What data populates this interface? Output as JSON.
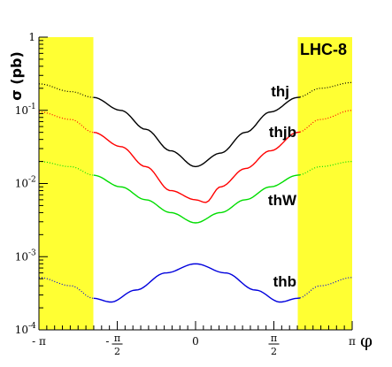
{
  "chart_data": {
    "type": "line",
    "y_scale": "log",
    "ylim": [
      0.0001,
      1
    ],
    "xlim": [
      -3.14159,
      3.14159
    ],
    "ylabel": "σ (pb)",
    "xlabel": "φ",
    "corner_label": "LHC-8",
    "x_tick_labels": [
      {
        "value": -3.14159,
        "text": "- π"
      },
      {
        "value": -1.5708,
        "num": "π",
        "den": "2",
        "sign": "-"
      },
      {
        "value": 0,
        "text": "0"
      },
      {
        "value": 1.5708,
        "num": "π",
        "den": "2",
        "sign": ""
      },
      {
        "value": 3.14159,
        "text": "π"
      }
    ],
    "y_tick_labels": [
      {
        "value": 1,
        "text": "1"
      },
      {
        "value": 0.1,
        "mant": "10",
        "exp": "-1"
      },
      {
        "value": 0.01,
        "mant": "10",
        "exp": "-2"
      },
      {
        "value": 0.001,
        "mant": "10",
        "exp": "-3"
      },
      {
        "value": 0.0001,
        "mant": "10",
        "exp": "-4"
      }
    ],
    "excluded_regions": [
      [
        -3.14159,
        -2.05
      ],
      [
        2.05,
        3.14159
      ]
    ],
    "excluded_color": "#ffff33",
    "series": [
      {
        "name": "thj",
        "color": "#000000",
        "x": [
          -3.14159,
          -2.5,
          -2.05,
          -1.5,
          -1.0,
          -0.5,
          0,
          0.5,
          1.0,
          1.5,
          2.05,
          2.5,
          3.14159
        ],
        "y": [
          0.23,
          0.18,
          0.15,
          0.1,
          0.055,
          0.028,
          0.017,
          0.026,
          0.05,
          0.095,
          0.15,
          0.2,
          0.24
        ]
      },
      {
        "name": "thjb",
        "color": "#ff0000",
        "x": [
          -3.14159,
          -2.5,
          -2.05,
          -1.5,
          -1.0,
          -0.5,
          0,
          0.2,
          0.5,
          1.0,
          1.5,
          2.05,
          2.5,
          3.14159
        ],
        "y": [
          0.095,
          0.075,
          0.05,
          0.032,
          0.017,
          0.008,
          0.006,
          0.0055,
          0.009,
          0.016,
          0.028,
          0.05,
          0.075,
          0.1
        ]
      },
      {
        "name": "thW",
        "color": "#00dd00",
        "x": [
          -3.14159,
          -2.5,
          -2.05,
          -1.5,
          -1.0,
          -0.5,
          0,
          0.5,
          1.0,
          1.5,
          2.05,
          2.5,
          3.14159
        ],
        "y": [
          0.02,
          0.017,
          0.013,
          0.009,
          0.006,
          0.004,
          0.0029,
          0.004,
          0.006,
          0.009,
          0.013,
          0.017,
          0.02
        ]
      },
      {
        "name": "thb",
        "color": "#0000dd",
        "x": [
          -3.14159,
          -2.5,
          -2.05,
          -1.7,
          -1.2,
          -0.6,
          0,
          0.6,
          1.2,
          1.7,
          2.05,
          2.5,
          3.14159
        ],
        "y": [
          0.00052,
          0.0004,
          0.00027,
          0.00024,
          0.00035,
          0.0006,
          0.0008,
          0.0006,
          0.00035,
          0.00024,
          0.00027,
          0.0004,
          0.00052
        ]
      }
    ]
  }
}
